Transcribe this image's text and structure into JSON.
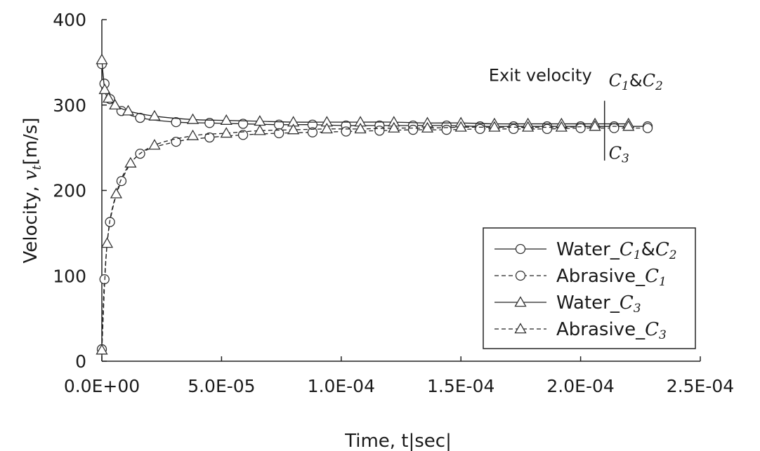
{
  "chart_data": {
    "type": "line",
    "xlabel": "Time, t|sec|",
    "ylabel_prefix": "Velocity, ",
    "ylabel_var": "v",
    "ylabel_sub": "t",
    "ylabel_suffix": "[m/s]",
    "xlim": [
      0,
      0.00025
    ],
    "ylim": [
      0,
      400
    ],
    "x_ticks": [
      0,
      5e-05,
      0.0001,
      0.00015,
      0.0002,
      0.00025
    ],
    "x_tick_labels": [
      "0.0E+00",
      "5.0E-05",
      "1.0E-04",
      "1.5E-04",
      "2.0E-04",
      "2.5E-04"
    ],
    "y_ticks": [
      0,
      100,
      200,
      300,
      400
    ],
    "y_tick_labels": [
      "0",
      "100",
      "200",
      "300",
      "400"
    ],
    "grid": false,
    "legend_position": "bottom-right",
    "annotation": {
      "text": "Exit velocity",
      "upper_label": {
        "base": "C",
        "sub": "1",
        "mid": "&",
        "base2": "C",
        "sub2": "2"
      },
      "lower_label": {
        "base": "C",
        "sub": "3"
      },
      "x": 0.00021
    },
    "series": [
      {
        "name": "Water_C1&C2",
        "name_parts": {
          "prefix": "Water_",
          "base": "C",
          "sub": "1",
          "mid": "&",
          "base2": "C",
          "sub2": "2"
        },
        "marker": "circle",
        "dash": "solid",
        "marker_x": [
          0.0,
          1.1e-06,
          3.4e-06,
          8.2e-06,
          1.6e-05,
          3.1e-05,
          4.5e-05,
          5.9e-05,
          7.4e-05,
          8.8e-05,
          0.000102,
          0.000116,
          0.00013,
          0.000144,
          0.000158,
          0.000172,
          0.000186,
          0.0002,
          0.000214,
          0.000228
        ],
        "marker_y": [
          348,
          325,
          307,
          293,
          285,
          280,
          279,
          278,
          277,
          277,
          276,
          276,
          276,
          276,
          275,
          275,
          275,
          275,
          275,
          275
        ]
      },
      {
        "name": "Abrasive_C1",
        "name_parts": {
          "prefix": "Abrasive_",
          "base": "C",
          "sub": "1"
        },
        "marker": "circle",
        "dash": "dashed",
        "marker_x": [
          0.0,
          1.1e-06,
          3.4e-06,
          8.2e-06,
          1.6e-05,
          3.1e-05,
          4.5e-05,
          5.9e-05,
          7.4e-05,
          8.8e-05,
          0.000102,
          0.000116,
          0.00013,
          0.000144,
          0.000158,
          0.000172,
          0.000186,
          0.0002,
          0.000214,
          0.000228
        ],
        "marker_y": [
          14,
          96,
          163,
          211,
          243,
          257,
          262,
          265,
          267,
          268,
          269,
          270,
          271,
          271,
          272,
          272,
          272,
          273,
          273,
          273
        ]
      },
      {
        "name": "Water_C3",
        "name_parts": {
          "prefix": "Water_",
          "base": "C",
          "sub": "3"
        },
        "marker": "triangle",
        "dash": "solid",
        "marker_x": [
          0.0,
          1.2e-06,
          2.8e-06,
          5.5e-06,
          1.1e-05,
          2.2e-05,
          3.8e-05,
          5.2e-05,
          6.6e-05,
          8e-05,
          9.4e-05,
          0.000108,
          0.000122,
          0.000136,
          0.00015,
          0.000164,
          0.000178,
          0.000192,
          0.000206,
          0.00022
        ],
        "marker_y": [
          353,
          318,
          308,
          300,
          293,
          287,
          283,
          282,
          281,
          280,
          280,
          280,
          280,
          279,
          279,
          278,
          278,
          278,
          278,
          278
        ]
      },
      {
        "name": "Abrasive_C3",
        "name_parts": {
          "prefix": "Abrasive_",
          "base": "C",
          "sub": "3"
        },
        "marker": "triangle",
        "dash": "dashed",
        "marker_x": [
          0.0,
          2.2e-06,
          6e-06,
          1.2e-05,
          2.2e-05,
          3.8e-05,
          5.2e-05,
          6.6e-05,
          8e-05,
          9.4e-05,
          0.000108,
          0.000122,
          0.000136,
          0.00015,
          0.000164,
          0.000178,
          0.000192,
          0.000206,
          0.00022
        ],
        "marker_y": [
          13,
          138,
          196,
          232,
          253,
          264,
          267,
          270,
          271,
          272,
          272,
          273,
          273,
          274,
          274,
          274,
          274,
          275,
          275
        ]
      }
    ]
  }
}
